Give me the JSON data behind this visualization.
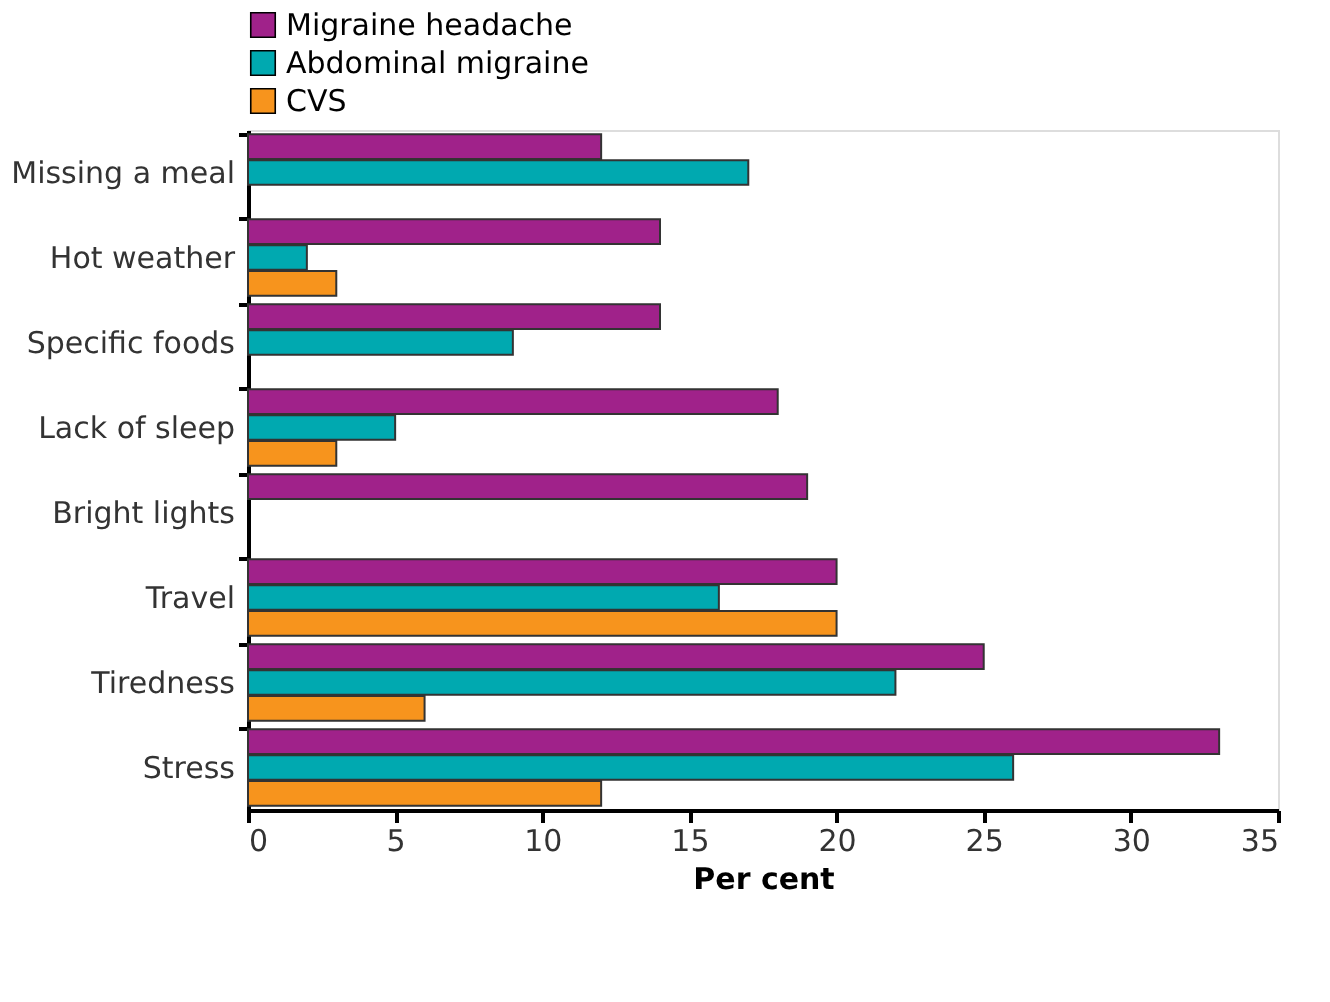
{
  "chart_data": {
    "type": "bar",
    "orientation": "horizontal",
    "xlabel": "Per cent",
    "categories": [
      "Missing a meal",
      "Hot weather",
      "Specific foods",
      "Lack of sleep",
      "Bright lights",
      "Travel",
      "Tiredness",
      "Stress"
    ],
    "series": [
      {
        "name": "Migraine headache",
        "color": "#a0228a",
        "values": [
          12,
          14,
          14,
          18,
          19,
          20,
          25,
          33
        ]
      },
      {
        "name": "Abdominal migraine",
        "color": "#00a9b0",
        "values": [
          17,
          2,
          9,
          5,
          null,
          16,
          22,
          26
        ]
      },
      {
        "name": "CVS",
        "color": "#f7941d",
        "values": [
          null,
          3,
          null,
          3,
          null,
          20,
          6,
          12
        ]
      }
    ],
    "xlim": [
      0,
      35
    ],
    "xticks": [
      0,
      5,
      10,
      15,
      20,
      25,
      30,
      35
    ],
    "grid": false,
    "legend": "top left"
  }
}
